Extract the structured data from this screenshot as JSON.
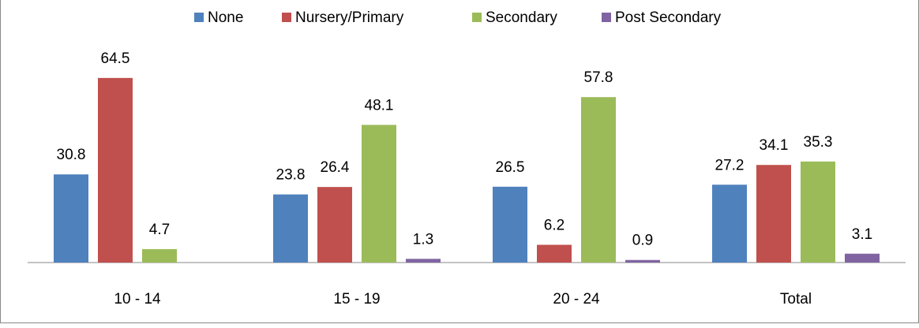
{
  "chart_data": {
    "type": "bar",
    "categories": [
      "10 - 14",
      "15 - 19",
      "20 - 24",
      "Total"
    ],
    "series": [
      {
        "name": "None",
        "color": "#4f81bd",
        "values": [
          30.8,
          23.8,
          26.5,
          27.2
        ]
      },
      {
        "name": "Nursery/Primary",
        "color": "#c0504d",
        "values": [
          64.5,
          26.4,
          6.2,
          34.1
        ]
      },
      {
        "name": "Secondary",
        "color": "#9bbb59",
        "values": [
          4.7,
          48.1,
          57.8,
          35.3
        ]
      },
      {
        "name": "Post Secondary",
        "color": "#8064a2",
        "values": [
          null,
          1.3,
          0.9,
          3.1
        ]
      }
    ],
    "legend": "top"
  }
}
